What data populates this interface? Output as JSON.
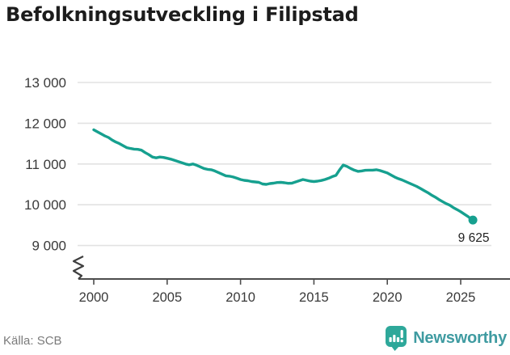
{
  "title": "Befolkningsutveckling i Filipstad",
  "footer": {
    "source": "Källa: SCB",
    "brand": "Newsworthy"
  },
  "colors": {
    "line": "#16a08f",
    "marker": "#16a08f",
    "grid": "#e2e2e2",
    "axis": "#4d4d4d",
    "tick_text": "#3a3a3a",
    "title_text": "#1c1c1c",
    "end_label_text": "#222222",
    "source_text": "#7b7b7b",
    "brand_text": "#3f9ba1",
    "brand_icon": "#2ea89a"
  },
  "chart_data": {
    "type": "line",
    "title": "Befolkningsutveckling i Filipstad",
    "xlabel": "",
    "ylabel": "",
    "grid": true,
    "legend_position": "none",
    "axis_break_bottom_left": true,
    "x_ticks": [
      2000,
      2005,
      2010,
      2015,
      2020,
      2025
    ],
    "y_ticks": [
      13000,
      12000,
      11000,
      10000,
      9000
    ],
    "y_tick_labels": [
      "13 000",
      "12 000",
      "11 000",
      "10 000",
      "9 000"
    ],
    "ylim": [
      9000,
      13000
    ],
    "xlim": [
      1999.5,
      2026.5
    ],
    "end_label": "9 625",
    "end_value": 9625,
    "series": [
      {
        "points": [
          [
            2000.0,
            11840
          ],
          [
            2000.25,
            11790
          ],
          [
            2000.5,
            11740
          ],
          [
            2000.75,
            11690
          ],
          [
            2001.0,
            11650
          ],
          [
            2001.25,
            11590
          ],
          [
            2001.5,
            11540
          ],
          [
            2001.75,
            11500
          ],
          [
            2002.0,
            11450
          ],
          [
            2002.25,
            11400
          ],
          [
            2002.5,
            11380
          ],
          [
            2002.75,
            11365
          ],
          [
            2003.0,
            11360
          ],
          [
            2003.25,
            11340
          ],
          [
            2003.5,
            11280
          ],
          [
            2003.75,
            11230
          ],
          [
            2004.0,
            11170
          ],
          [
            2004.25,
            11150
          ],
          [
            2004.5,
            11170
          ],
          [
            2004.75,
            11160
          ],
          [
            2005.0,
            11140
          ],
          [
            2005.25,
            11120
          ],
          [
            2005.5,
            11090
          ],
          [
            2005.75,
            11060
          ],
          [
            2006.0,
            11030
          ],
          [
            2006.25,
            11000
          ],
          [
            2006.5,
            10980
          ],
          [
            2006.75,
            11000
          ],
          [
            2007.0,
            10970
          ],
          [
            2007.25,
            10930
          ],
          [
            2007.5,
            10890
          ],
          [
            2007.75,
            10870
          ],
          [
            2008.0,
            10860
          ],
          [
            2008.25,
            10830
          ],
          [
            2008.5,
            10790
          ],
          [
            2008.75,
            10750
          ],
          [
            2009.0,
            10710
          ],
          [
            2009.25,
            10700
          ],
          [
            2009.5,
            10680
          ],
          [
            2009.75,
            10650
          ],
          [
            2010.0,
            10620
          ],
          [
            2010.25,
            10600
          ],
          [
            2010.5,
            10590
          ],
          [
            2010.75,
            10570
          ],
          [
            2011.0,
            10560
          ],
          [
            2011.25,
            10550
          ],
          [
            2011.5,
            10510
          ],
          [
            2011.75,
            10500
          ],
          [
            2012.0,
            10520
          ],
          [
            2012.25,
            10530
          ],
          [
            2012.5,
            10545
          ],
          [
            2012.75,
            10550
          ],
          [
            2013.0,
            10540
          ],
          [
            2013.25,
            10525
          ],
          [
            2013.5,
            10530
          ],
          [
            2013.75,
            10560
          ],
          [
            2014.0,
            10590
          ],
          [
            2014.25,
            10620
          ],
          [
            2014.5,
            10600
          ],
          [
            2014.75,
            10580
          ],
          [
            2015.0,
            10570
          ],
          [
            2015.25,
            10580
          ],
          [
            2015.5,
            10595
          ],
          [
            2015.75,
            10620
          ],
          [
            2016.0,
            10650
          ],
          [
            2016.25,
            10690
          ],
          [
            2016.5,
            10720
          ],
          [
            2016.75,
            10860
          ],
          [
            2017.0,
            10975
          ],
          [
            2017.25,
            10940
          ],
          [
            2017.5,
            10890
          ],
          [
            2017.75,
            10850
          ],
          [
            2018.0,
            10820
          ],
          [
            2018.25,
            10830
          ],
          [
            2018.5,
            10845
          ],
          [
            2018.75,
            10850
          ],
          [
            2019.0,
            10850
          ],
          [
            2019.25,
            10860
          ],
          [
            2019.5,
            10840
          ],
          [
            2019.75,
            10810
          ],
          [
            2020.0,
            10780
          ],
          [
            2020.25,
            10730
          ],
          [
            2020.5,
            10680
          ],
          [
            2020.75,
            10640
          ],
          [
            2021.0,
            10610
          ],
          [
            2021.25,
            10570
          ],
          [
            2021.5,
            10530
          ],
          [
            2021.75,
            10490
          ],
          [
            2022.0,
            10450
          ],
          [
            2022.25,
            10400
          ],
          [
            2022.5,
            10350
          ],
          [
            2022.75,
            10300
          ],
          [
            2023.0,
            10240
          ],
          [
            2023.25,
            10190
          ],
          [
            2023.5,
            10130
          ],
          [
            2023.75,
            10080
          ],
          [
            2024.0,
            10030
          ],
          [
            2024.25,
            9990
          ],
          [
            2024.5,
            9930
          ],
          [
            2024.75,
            9880
          ],
          [
            2025.0,
            9830
          ],
          [
            2025.25,
            9770
          ],
          [
            2025.5,
            9710
          ],
          [
            2025.75,
            9640
          ],
          [
            2025.83,
            9625
          ]
        ]
      }
    ]
  }
}
